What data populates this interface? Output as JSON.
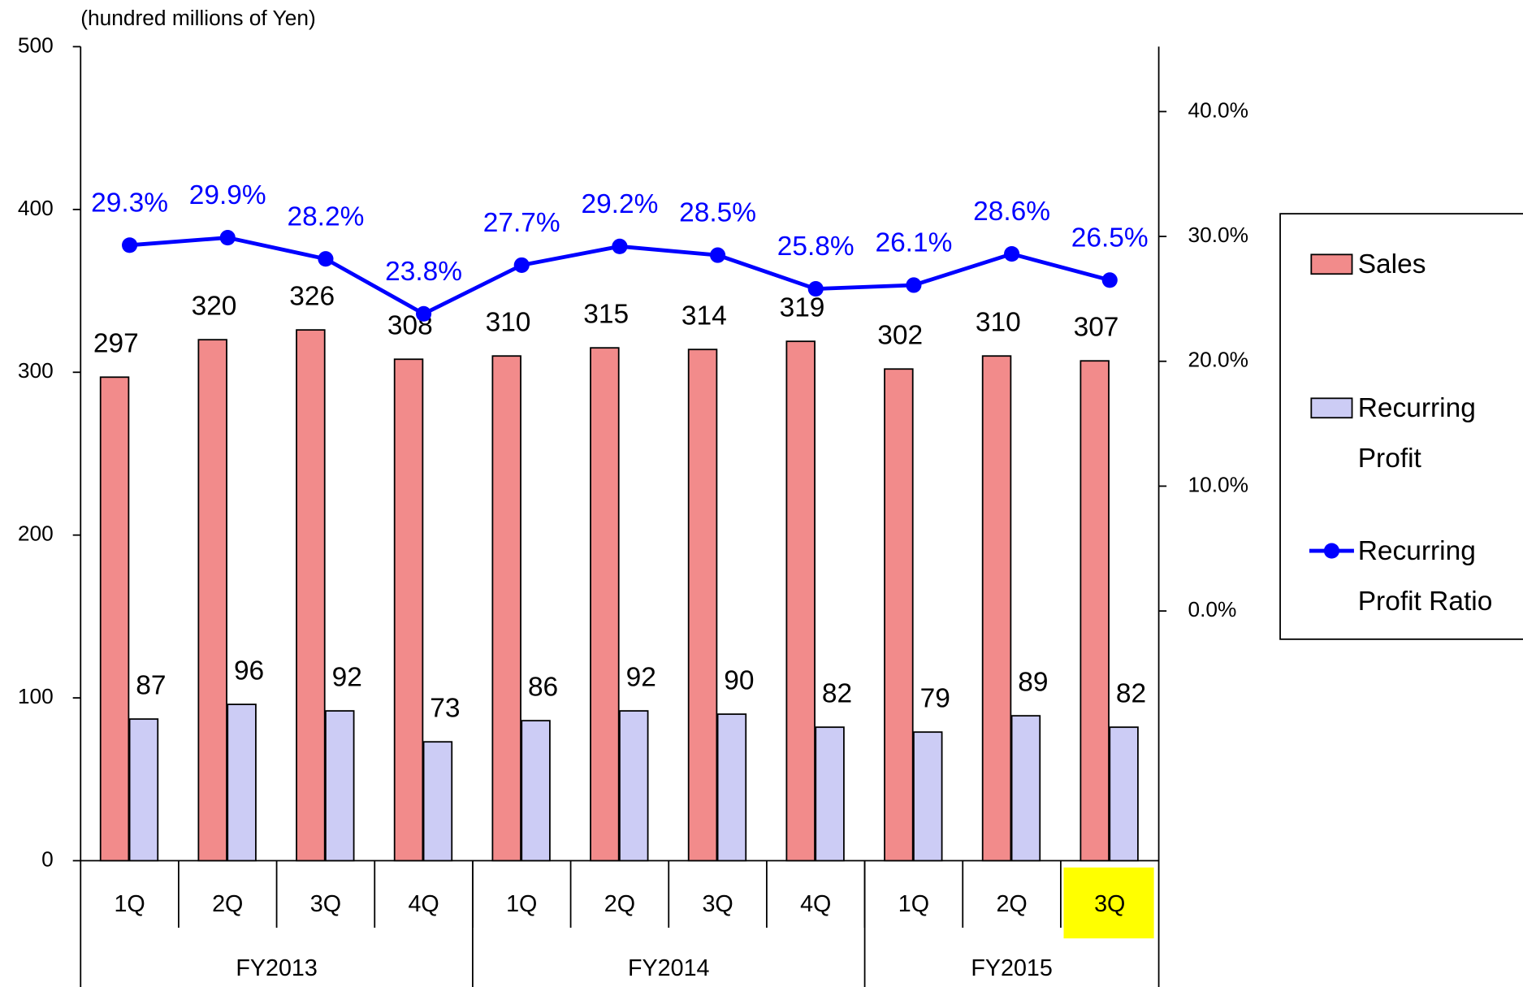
{
  "chart_data": {
    "type": "bar-line",
    "unit_label": "(hundred millions of Yen)",
    "category_groups": [
      {
        "name": "FY2013",
        "categories": [
          "1Q",
          "2Q",
          "3Q",
          "4Q"
        ]
      },
      {
        "name": "FY2014",
        "categories": [
          "1Q",
          "2Q",
          "3Q",
          "4Q"
        ]
      },
      {
        "name": "FY2015",
        "categories": [
          "1Q",
          "2Q",
          "3Q"
        ]
      }
    ],
    "highlight": {
      "group": 2,
      "category": 2,
      "color": "#ffff00"
    },
    "series": [
      {
        "name": "Sales",
        "type": "bar",
        "color": "#f28b8b",
        "values": [
          297,
          320,
          326,
          308,
          310,
          315,
          314,
          319,
          302,
          310,
          307
        ]
      },
      {
        "name": "Recurring Profit",
        "type": "bar",
        "color": "#ccccf5",
        "values": [
          87,
          96,
          92,
          73,
          86,
          92,
          90,
          82,
          79,
          89,
          82
        ]
      },
      {
        "name": "Recurring Profit Ratio",
        "type": "line",
        "axis": "y2",
        "color": "#0000ff",
        "values": [
          29.3,
          29.9,
          28.2,
          23.8,
          27.7,
          29.2,
          28.5,
          25.8,
          26.1,
          28.6,
          26.5
        ],
        "value_labels": [
          "29.3%",
          "29.9%",
          "28.2%",
          "23.8%",
          "27.7%",
          "29.2%",
          "28.5%",
          "25.8%",
          "26.1%",
          "28.6%",
          "26.5%"
        ]
      }
    ],
    "ylim": [
      0,
      500
    ],
    "yticks": [
      0,
      100,
      200,
      300,
      400,
      500
    ],
    "y2lim": [
      -20,
      45.2
    ],
    "y2ticks": [
      {
        "value": 0,
        "label": "0.0%"
      },
      {
        "value": 10,
        "label": "10.0%"
      },
      {
        "value": 20,
        "label": "20.0%"
      },
      {
        "value": 30,
        "label": "30.0%"
      },
      {
        "value": 40,
        "label": "40.0%"
      }
    ],
    "legend": "right"
  }
}
